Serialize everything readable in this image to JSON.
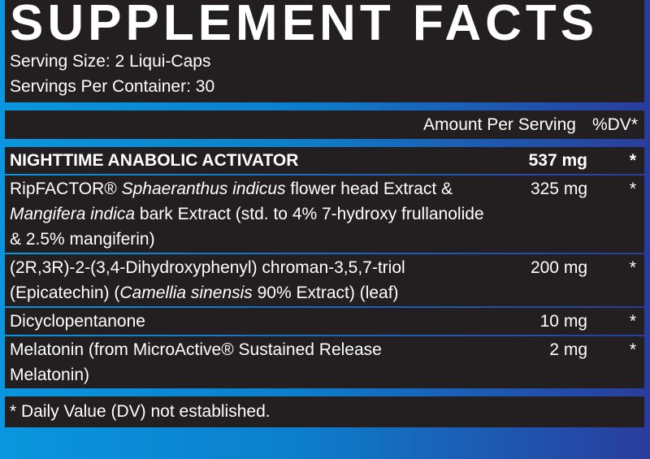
{
  "title": "SUPPLEMENT FACTS",
  "serving_size": "Serving Size: 2 Liqui-Caps",
  "servings_per_container": "Servings Per Container: 30",
  "header": {
    "amount": "Amount Per Serving",
    "dv": "%DV*"
  },
  "rows": [
    {
      "name": "NIGHTTIME ANABOLIC ACTIVATOR",
      "amount": "537 mg",
      "dv": "*"
    },
    {
      "name_parts": [
        "RipFACTOR® ",
        "Sphaeranthus indicus",
        " flower head Extract & ",
        "Mangifera indica",
        " bark Extract (std. to 4% 7-hydroxy frullanolide & 2.5% mangiferin)"
      ],
      "amount": "325 mg",
      "dv": "*"
    },
    {
      "name_parts": [
        "(2R,3R)-2-(3,4-Dihydroxyphenyl) chroman-3,5,7-triol (Epicatechin) (",
        "Camellia sinensis",
        " 90% Extract) (leaf)"
      ],
      "amount": "200 mg",
      "dv": "*"
    },
    {
      "name": "Dicyclopentanone",
      "amount": "10 mg",
      "dv": "*"
    },
    {
      "name": "Melatonin (from MicroActive® Sustained Release Melatonin)",
      "amount": "2 mg",
      "dv": "*"
    }
  ],
  "footnote": "* Daily Value (DV) not established.",
  "colors": {
    "panel": "#231f20",
    "border_left": "#0a96de",
    "border_right": "#2a3c9c"
  }
}
